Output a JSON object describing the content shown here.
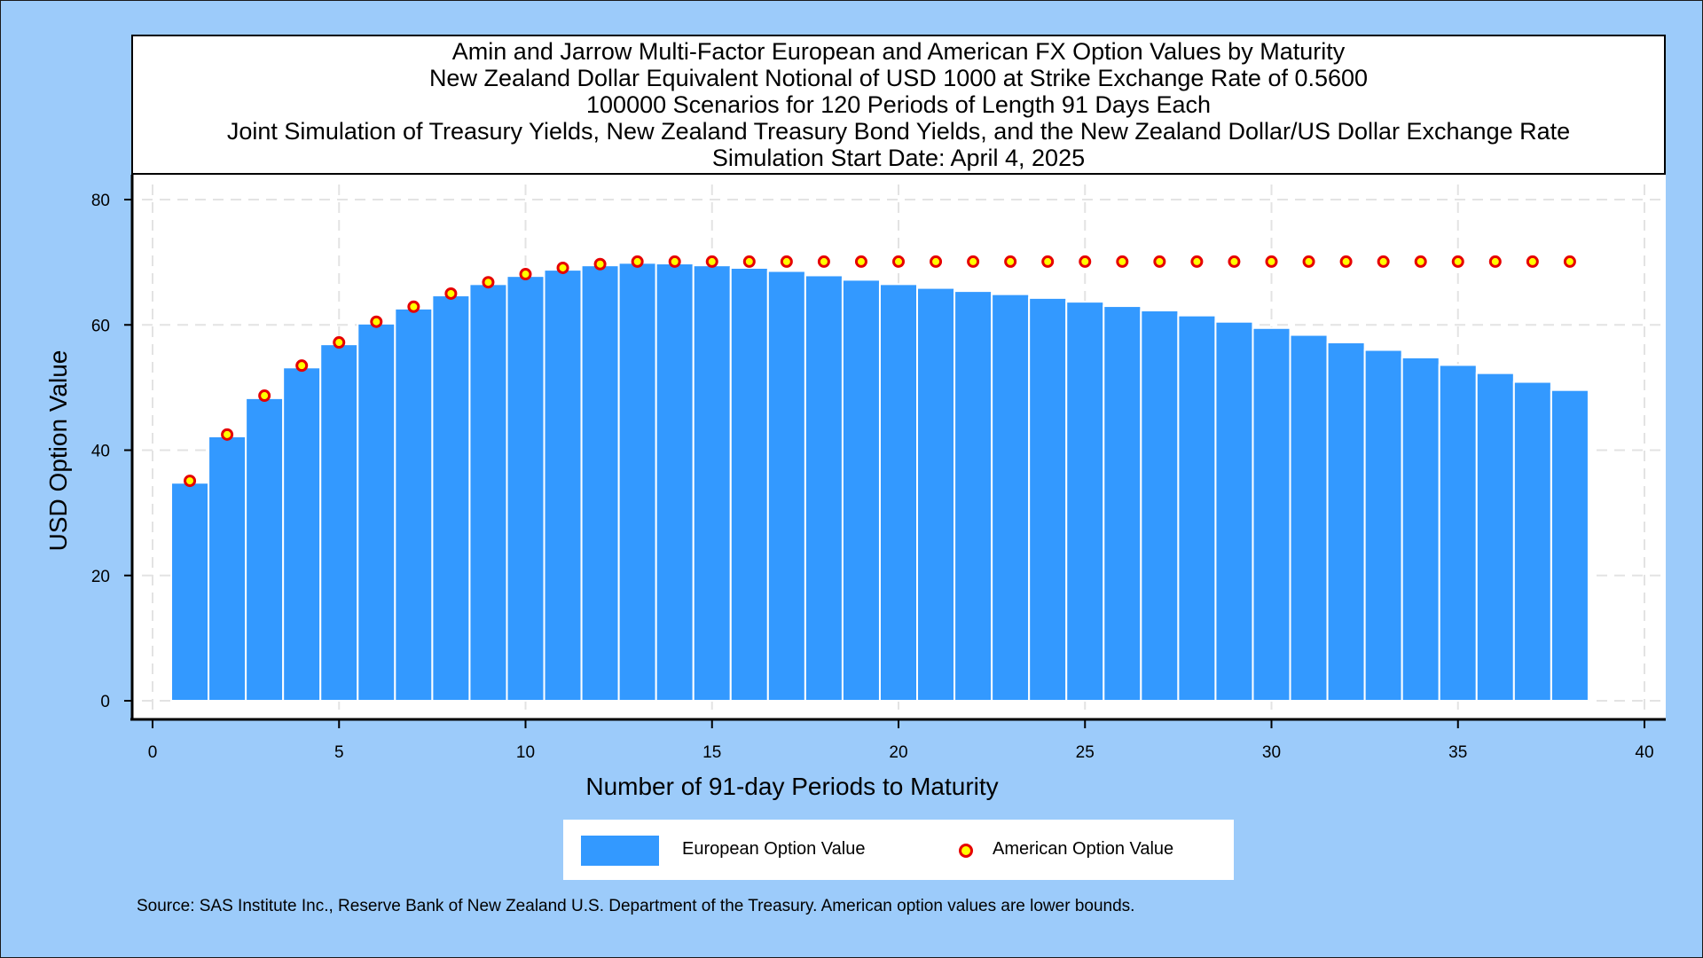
{
  "colors": {
    "background": "#9ccbfa",
    "plot_background": "#ffffff",
    "bar": "#3399ff",
    "marker_fill": "#ffff00",
    "marker_edge": "#e60000"
  },
  "chart_data": {
    "type": "bar",
    "title_lines": [
      "Amin and Jarrow Multi-Factor European and American FX Option Values by Maturity",
      "New Zealand Dollar Equivalent Notional of USD 1000 at Strike Exchange Rate of  0.5600",
      "100000 Scenarios for 120 Periods of Length 91 Days Each",
      "Joint Simulation of Treasury Yields, New Zealand Treasury Bond Yields, and the New Zealand Dollar/US Dollar Exchange Rate",
      "Simulation Start Date: April 4, 2025"
    ],
    "xlabel": "Number of 91-day Periods to Maturity",
    "ylabel": "USD Option Value",
    "xlim": [
      0,
      40
    ],
    "ylim": [
      0,
      80
    ],
    "xticks": [
      0,
      5,
      10,
      15,
      20,
      25,
      30,
      35,
      40
    ],
    "yticks": [
      0,
      20,
      40,
      60,
      80
    ],
    "grid": true,
    "legend_position": "bottom",
    "x": [
      1,
      2,
      3,
      4,
      5,
      6,
      7,
      8,
      9,
      10,
      11,
      12,
      13,
      14,
      15,
      16,
      17,
      18,
      19,
      20,
      21,
      22,
      23,
      24,
      25,
      26,
      27,
      28,
      29,
      30,
      31,
      32,
      33,
      34,
      35,
      36,
      37,
      38
    ],
    "series": [
      {
        "name": "European Option Value",
        "type": "bar",
        "values": [
          34.8,
          42.2,
          48.3,
          53.2,
          56.9,
          60.2,
          62.6,
          64.7,
          66.5,
          67.8,
          68.8,
          69.5,
          69.9,
          69.8,
          69.5,
          69.1,
          68.6,
          67.9,
          67.2,
          66.5,
          65.9,
          65.4,
          64.9,
          64.3,
          63.7,
          63.0,
          62.3,
          61.5,
          60.5,
          59.5,
          58.4,
          57.2,
          56.0,
          54.8,
          53.6,
          52.3,
          50.9,
          49.6
        ]
      },
      {
        "name": "American Option Value",
        "type": "scatter",
        "values": [
          35.1,
          42.5,
          48.7,
          53.5,
          57.2,
          60.5,
          62.9,
          65.0,
          66.8,
          68.1,
          69.1,
          69.7,
          70.1,
          70.1,
          70.1,
          70.1,
          70.1,
          70.1,
          70.1,
          70.1,
          70.1,
          70.1,
          70.1,
          70.1,
          70.1,
          70.1,
          70.1,
          70.1,
          70.1,
          70.1,
          70.1,
          70.1,
          70.1,
          70.1,
          70.1,
          70.1,
          70.1,
          70.1
        ]
      }
    ]
  },
  "legend": {
    "european_label": "European Option Value",
    "american_label": "American Option Value"
  },
  "source_note": "Source: SAS Institute Inc., Reserve Bank of New Zealand U.S. Department of the Treasury. American option values are lower bounds."
}
